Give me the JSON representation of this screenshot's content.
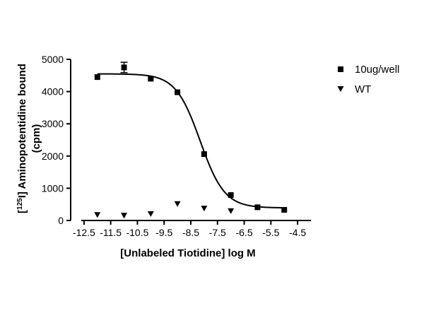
{
  "chart_data": {
    "type": "scatter",
    "title": "",
    "xlabel": "[Unlabeled Tiotidine] log M",
    "ylabel": {
      "prefix": "[",
      "superscript": "125",
      "mid": "I] Aminopotentidine bound",
      "line2": "(cpm)"
    },
    "xlim": [
      -13.0,
      -4.0
    ],
    "ylim": [
      0,
      5000
    ],
    "x_ticks": [
      -12.5,
      -11.5,
      -10.5,
      -9.5,
      -8.5,
      -7.5,
      -6.5,
      -5.5,
      -4.5
    ],
    "x_tick_labels": [
      "-12.5",
      "-11.5",
      "-10.5",
      "-9.5",
      "-8.5",
      "-7.5",
      "-6.5",
      "-5.5",
      "-4.5"
    ],
    "y_ticks": [
      0,
      1000,
      2000,
      3000,
      4000,
      5000
    ],
    "y_tick_labels": [
      "0",
      "1000",
      "2000",
      "3000",
      "4000",
      "5000"
    ],
    "grid": false,
    "legend_position": "top-right",
    "series": [
      {
        "name": "10ug/well",
        "marker": "square",
        "color": "#000000",
        "x": [
          -12,
          -11,
          -10,
          -9,
          -8,
          -7,
          -6,
          -5
        ],
        "y": [
          4450,
          4750,
          4400,
          3980,
          2060,
          790,
          410,
          330
        ],
        "error": [
          0,
          160,
          0,
          0,
          0,
          0,
          0,
          0
        ],
        "fit": {
          "model": "sigmoid",
          "top": 4550,
          "bottom": 390,
          "logEC50": -8.15,
          "hill": -0.95
        }
      },
      {
        "name": "WT",
        "marker": "triangle-down",
        "color": "#000000",
        "x": [
          -12,
          -11,
          -10,
          -9,
          -8,
          -7
        ],
        "y": [
          170,
          150,
          200,
          510,
          370,
          290
        ],
        "error": [
          0,
          0,
          0,
          0,
          0,
          0
        ]
      }
    ]
  }
}
